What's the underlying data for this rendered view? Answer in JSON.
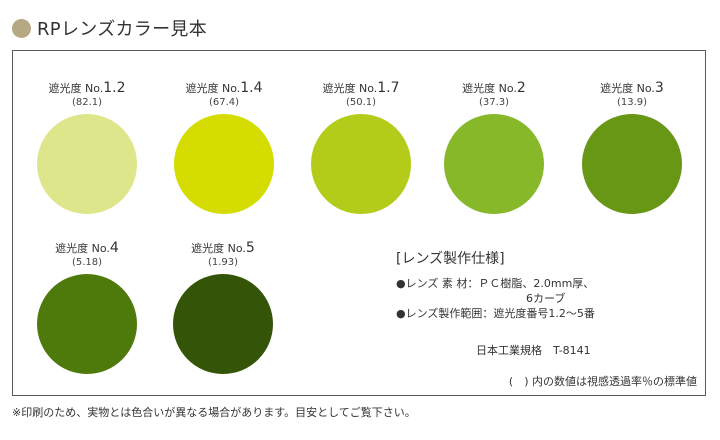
{
  "header": {
    "title": "RPレンズカラー見本",
    "dot_color": "#b5a882"
  },
  "swatches": [
    {
      "label": "遮光度 No.",
      "number": "1.2",
      "value": "(82.1)",
      "color": "#dde68a"
    },
    {
      "label": "遮光度 No.",
      "number": "1.4",
      "value": "(67.4)",
      "color": "#d4dc00"
    },
    {
      "label": "遮光度 No.",
      "number": "1.7",
      "value": "(50.1)",
      "color": "#b3cc1a"
    },
    {
      "label": "遮光度 No.",
      "number": "2",
      "value": "(37.3)",
      "color": "#87b82a"
    },
    {
      "label": "遮光度 No.",
      "number": "3",
      "value": "(13.9)",
      "color": "#679714"
    },
    {
      "label": "遮光度 No.",
      "number": "4",
      "value": "(5.18)",
      "color": "#4e7a0b"
    },
    {
      "label": "遮光度 No.",
      "number": "5",
      "value": "(1.93)",
      "color": "#345507"
    }
  ],
  "spec": {
    "title": "[レンズ製作仕様]",
    "material": "●レンズ 素 材：ＰＣ樹脂、2.0mm厚、",
    "material_cont": "6カーブ",
    "range": "●レンズ製作範囲：遮光度番号1.2～5番",
    "standard": "日本工業規格　T-8141"
  },
  "panel_note": "(　) 内の数値は視感透過率％の標準値",
  "footnote": "※印刷のため、実物とは色合いが異なる場合があります。目安としてご覧下さい。"
}
